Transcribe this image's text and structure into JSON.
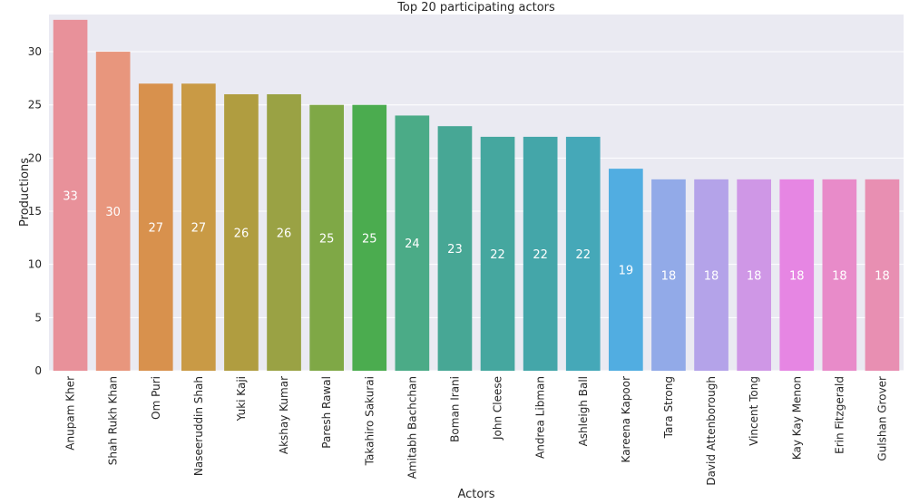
{
  "chart_data": {
    "type": "bar",
    "title": "Top 20 participating actors",
    "xlabel": "Actors",
    "ylabel": "Productions",
    "ylim": [
      0,
      33.5
    ],
    "yticks": [
      0,
      5,
      10,
      15,
      20,
      25,
      30
    ],
    "grid": true,
    "categories": [
      "Anupam Kher",
      "Shah Rukh Khan",
      "Om Puri",
      "Naseeruddin Shah",
      "Yuki Kaji",
      "Akshay Kumar",
      "Paresh Rawal",
      "Takahiro Sakurai",
      "Amitabh Bachchan",
      "Boman Irani",
      "John Cleese",
      "Andrea Libman",
      "Ashleigh Ball",
      "Kareena Kapoor",
      "Tara Strong",
      "David Attenborough",
      "Vincent Tong",
      "Kay Kay Menon",
      "Erin Fitzgerald",
      "Gulshan Grover"
    ],
    "values": [
      33,
      30,
      27,
      27,
      26,
      26,
      25,
      25,
      24,
      23,
      22,
      22,
      22,
      19,
      18,
      18,
      18,
      18,
      18,
      18
    ],
    "colors": [
      "#e8919a",
      "#e8967d",
      "#d8914d",
      "#c99a45",
      "#b09d40",
      "#9aa244",
      "#7fa846",
      "#4bac4f",
      "#4bab87",
      "#47a795",
      "#45a79f",
      "#44a6a9",
      "#45a8b8",
      "#51ade1",
      "#92aae8",
      "#b4a3e9",
      "#cf97e6",
      "#e686e3",
      "#e88bc9",
      "#e88fb2"
    ]
  }
}
